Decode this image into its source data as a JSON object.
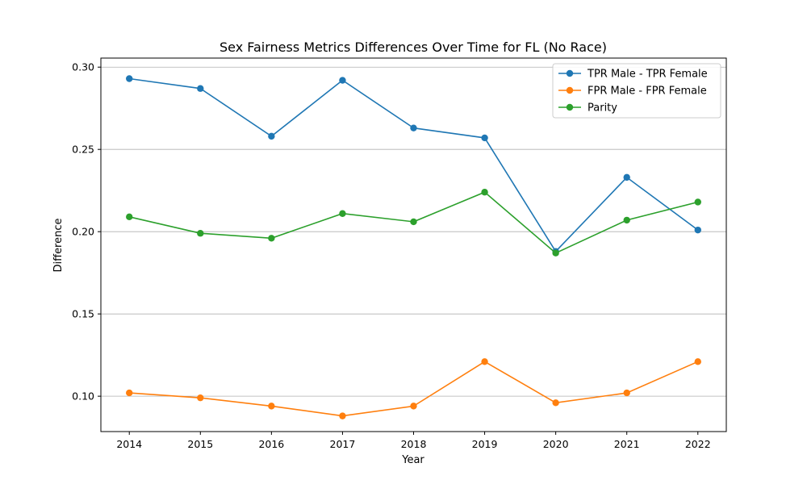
{
  "chart_data": {
    "type": "line",
    "title": "Sex Fairness Metrics Differences Over Time for FL (No Race)",
    "xlabel": "Year",
    "ylabel": "Difference",
    "x": [
      "2014",
      "2015",
      "2016",
      "2017",
      "2018",
      "2019",
      "2020",
      "2021",
      "2022"
    ],
    "xlim": [
      2013.6,
      2022.4
    ],
    "ylim": [
      0.0785,
      0.3055
    ],
    "yticks": [
      0.1,
      0.15,
      0.2,
      0.25,
      0.3
    ],
    "ytick_labels": [
      "0.10",
      "0.15",
      "0.20",
      "0.25",
      "0.30"
    ],
    "grid": "y-axis only",
    "legend_position": "top-right",
    "series": [
      {
        "name": "TPR Male - TPR Female",
        "color": "#1f77b4",
        "values": [
          0.293,
          0.287,
          0.258,
          0.292,
          0.263,
          0.257,
          0.188,
          0.233,
          0.201
        ]
      },
      {
        "name": "FPR Male - FPR Female",
        "color": "#ff7f0e",
        "values": [
          0.102,
          0.099,
          0.094,
          0.088,
          0.094,
          0.121,
          0.096,
          0.102,
          0.121
        ]
      },
      {
        "name": "Parity",
        "color": "#2ca02c",
        "values": [
          0.209,
          0.199,
          0.196,
          0.211,
          0.206,
          0.224,
          0.187,
          0.207,
          0.218
        ]
      }
    ]
  }
}
